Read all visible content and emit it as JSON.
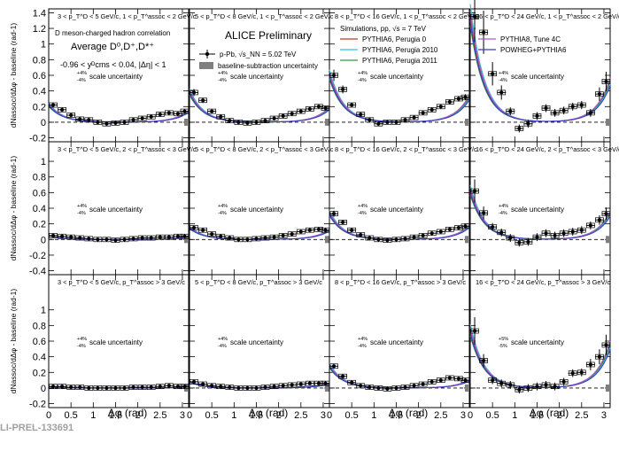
{
  "figure": {
    "preliminary": "ALICE Preliminary",
    "watermark": "LI-PREL-133691",
    "ylabel_prefix": "1",
    "ylabel_frac_num": "dN",
    "ylabel_frac_sup": "assoc",
    "ylabel_frac_den": "dΔφ",
    "ylabel_norm": "N",
    "ylabel_norm_sub": "D",
    "ylabel_suffix": "- baseline (rad",
    "ylabel_unit_sup": "-1",
    "ylabel_close": ")",
    "xlabel": "Δφ (rad)",
    "info_lines": [
      "D meson-charged hadron correlation",
      "Average D⁰,D⁺,D*⁺",
      "-0.96 < yᴰcms < 0.04, |Δη| < 1"
    ],
    "scale_uncertainty": "scale uncertainty",
    "scale_plus": "+4%",
    "scale_minus": "-4%",
    "scale_plus_alt": "+5%",
    "scale_minus_alt": "-5%",
    "data_legend": {
      "marker": "p-Pb, √s_NN = 5.02 TeV",
      "band": "baseline-subtraction uncertainty"
    },
    "sim_title": "Simulations, pp, √s = 7 TeV",
    "colors": {
      "pythia6_perugia0": "#c0392b",
      "pythia6_perugia2010": "#2ec4d6",
      "pythia6_perugia2011": "#2e9a3a",
      "pythia8_tune4c": "#b05cc6",
      "powheg_pythia6": "#3b3fc9",
      "data": "#000000",
      "band": "#7f7f7f"
    }
  },
  "chart_data": {
    "type": "scatter",
    "layout": "3x4 grid",
    "xlabel": "Δφ (rad)",
    "ylabel": "1/N_D dN^assoc/dΔφ - baseline (rad^-1)",
    "xlim": [
      0,
      3.14
    ],
    "xticks": [
      0,
      0.5,
      1,
      1.5,
      2,
      2.5,
      3
    ],
    "ylim": [
      -0.25,
      1.45
    ],
    "yticks": [
      -0.2,
      0,
      0.2,
      0.4,
      0.6,
      0.8,
      1,
      1.2,
      1.4
    ],
    "ylim_rows": [
      [
        -0.25,
        1.45
      ],
      [
        -0.45,
        1.25
      ],
      [
        -0.25,
        1.45
      ]
    ],
    "yticks_rows": [
      [
        -0.2,
        0,
        0.2,
        0.4,
        0.6,
        0.8,
        1,
        1.2,
        1.4
      ],
      [
        -0.4,
        -0.2,
        0,
        0.2,
        0.4,
        0.6,
        0.8,
        1
      ],
      [
        -0.2,
        0,
        0.2,
        0.4,
        0.6,
        0.8,
        1
      ]
    ],
    "series_names": [
      "p-Pb, √s_NN = 5.02 TeV",
      "PYTHIA6, Perugia 0",
      "PYTHIA6, Perugia 2010",
      "PYTHIA6, Perugia 2011",
      "PYTHIA8, Tune 4C",
      "POWHEG+PYTHIA6"
    ],
    "x": [
      0.1,
      0.3,
      0.5,
      0.7,
      0.9,
      1.1,
      1.3,
      1.5,
      1.7,
      1.9,
      2.1,
      2.3,
      2.5,
      2.7,
      2.9,
      3.05
    ],
    "panels": [
      {
        "label": "3 < p_T^D < 5 GeV/c, 1 < p_T^assoc < 2 GeV/c",
        "row": 0,
        "col": 0,
        "values": [
          0.22,
          0.16,
          0.09,
          0.04,
          0.03,
          0.0,
          -0.02,
          -0.01,
          0.0,
          0.03,
          0.05,
          0.07,
          0.1,
          0.12,
          0.11,
          0.14
        ]
      },
      {
        "label": "5 < p_T^D < 8 GeV/c, 1 < p_T^assoc < 2 GeV/c",
        "row": 0,
        "col": 1,
        "values": [
          0.38,
          0.28,
          0.14,
          0.07,
          0.02,
          0.0,
          -0.01,
          0.0,
          0.02,
          0.05,
          0.08,
          0.11,
          0.14,
          0.17,
          0.2,
          0.18
        ]
      },
      {
        "label": "8 < p_T^D < 16 GeV/c, 1 < p_T^assoc < 2 GeV/c",
        "row": 0,
        "col": 2,
        "values": [
          0.6,
          0.42,
          0.22,
          0.1,
          0.03,
          -0.02,
          0.0,
          0.0,
          0.03,
          0.06,
          0.12,
          0.16,
          0.2,
          0.26,
          0.3,
          0.32
        ]
      },
      {
        "label": "16 < p_T^D < 24 GeV/c, 1 < p_T^assoc < 2 GeV/c",
        "row": 0,
        "col": 3,
        "values": [
          1.35,
          1.15,
          0.62,
          0.38,
          0.14,
          -0.08,
          -0.02,
          0.08,
          0.18,
          0.12,
          0.15,
          0.2,
          0.22,
          0.12,
          0.36,
          0.52
        ]
      },
      {
        "label": "3 < p_T^D < 5 GeV/c, 2 < p_T^assoc < 3 GeV/c",
        "row": 1,
        "col": 0,
        "values": [
          0.05,
          0.04,
          0.03,
          0.02,
          0.01,
          0.0,
          0.0,
          -0.01,
          0.0,
          0.01,
          0.02,
          0.02,
          0.03,
          0.03,
          0.04,
          0.04
        ]
      },
      {
        "label": "5 < p_T^D < 8 GeV/c, 2 < p_T^assoc < 3 GeV/c",
        "row": 1,
        "col": 1,
        "values": [
          0.15,
          0.12,
          0.07,
          0.04,
          0.02,
          0.0,
          0.0,
          0.01,
          0.02,
          0.03,
          0.05,
          0.07,
          0.1,
          0.12,
          0.13,
          0.12
        ]
      },
      {
        "label": "8 < p_T^D < 16 GeV/c, 2 < p_T^assoc < 3 GeV/c",
        "row": 1,
        "col": 2,
        "values": [
          0.33,
          0.22,
          0.12,
          0.06,
          0.02,
          0.0,
          -0.01,
          0.0,
          0.01,
          0.03,
          0.05,
          0.08,
          0.1,
          0.13,
          0.15,
          0.17
        ]
      },
      {
        "label": "16 < p_T^D < 24 GeV/c, 2 < p_T^assoc < 3 GeV/c",
        "row": 1,
        "col": 3,
        "values": [
          0.62,
          0.34,
          0.16,
          0.09,
          0.02,
          -0.04,
          -0.03,
          0.03,
          0.08,
          0.05,
          0.08,
          0.1,
          0.12,
          0.18,
          0.25,
          0.33
        ]
      },
      {
        "label": "3 < p_T^D < 5 GeV/c, p_T^assoc > 3 GeV/c",
        "row": 2,
        "col": 0,
        "values": [
          0.02,
          0.02,
          0.01,
          0.01,
          0.0,
          0.0,
          0.0,
          0.0,
          0.0,
          0.01,
          0.01,
          0.01,
          0.02,
          0.03,
          0.02,
          0.02
        ]
      },
      {
        "label": "5 < p_T^D < 8 GeV/c, p_T^assoc > 3 GeV/c",
        "row": 2,
        "col": 1,
        "values": [
          0.08,
          0.05,
          0.03,
          0.02,
          0.01,
          0.0,
          0.0,
          0.0,
          0.01,
          0.02,
          0.03,
          0.04,
          0.05,
          0.06,
          0.06,
          0.06
        ]
      },
      {
        "label": "8 < p_T^D < 16 GeV/c, p_T^assoc > 3 GeV/c",
        "row": 2,
        "col": 2,
        "values": [
          0.28,
          0.15,
          0.07,
          0.03,
          0.01,
          0.0,
          -0.01,
          0.0,
          0.01,
          0.03,
          0.05,
          0.08,
          0.1,
          0.13,
          0.12,
          0.1
        ]
      },
      {
        "label": "16 < p_T^D < 24 GeV/c, p_T^assoc > 3 GeV/c",
        "row": 2,
        "col": 3,
        "values": [
          0.73,
          0.35,
          0.1,
          0.06,
          0.04,
          -0.02,
          0.0,
          0.02,
          0.04,
          0.02,
          0.08,
          0.19,
          0.2,
          0.3,
          0.4,
          0.55
        ]
      }
    ],
    "model_curves": "exponential fall-off near-side plus rising away-side, matched to each panel's data"
  }
}
